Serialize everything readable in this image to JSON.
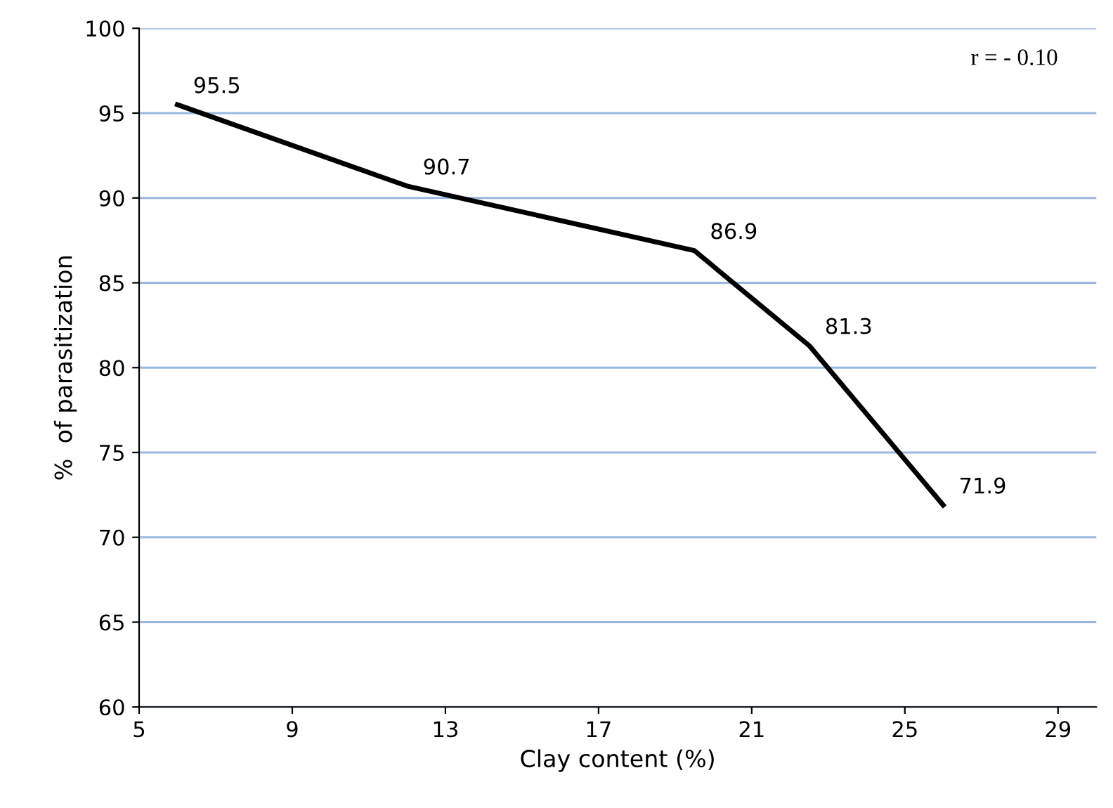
{
  "chart_data": {
    "type": "line",
    "xlabel": "Clay content (%)",
    "ylabel": "%  of parasitization",
    "x": [
      6,
      12,
      19.5,
      22.5,
      26
    ],
    "series": [
      {
        "color": "#000000",
        "values": [
          95.5,
          90.7,
          86.9,
          81.3,
          71.9
        ]
      }
    ],
    "data_labels": true,
    "xlim": [
      5,
      30
    ],
    "xticks": [
      5,
      9,
      13,
      17,
      21,
      25,
      29
    ],
    "ylim": [
      60,
      100
    ],
    "yticks": [
      60,
      65,
      70,
      75,
      80,
      85,
      90,
      95,
      100
    ],
    "grid": "y",
    "marker": "none",
    "line_style": "solid",
    "annotations": [
      "r = - 0.10"
    ]
  }
}
